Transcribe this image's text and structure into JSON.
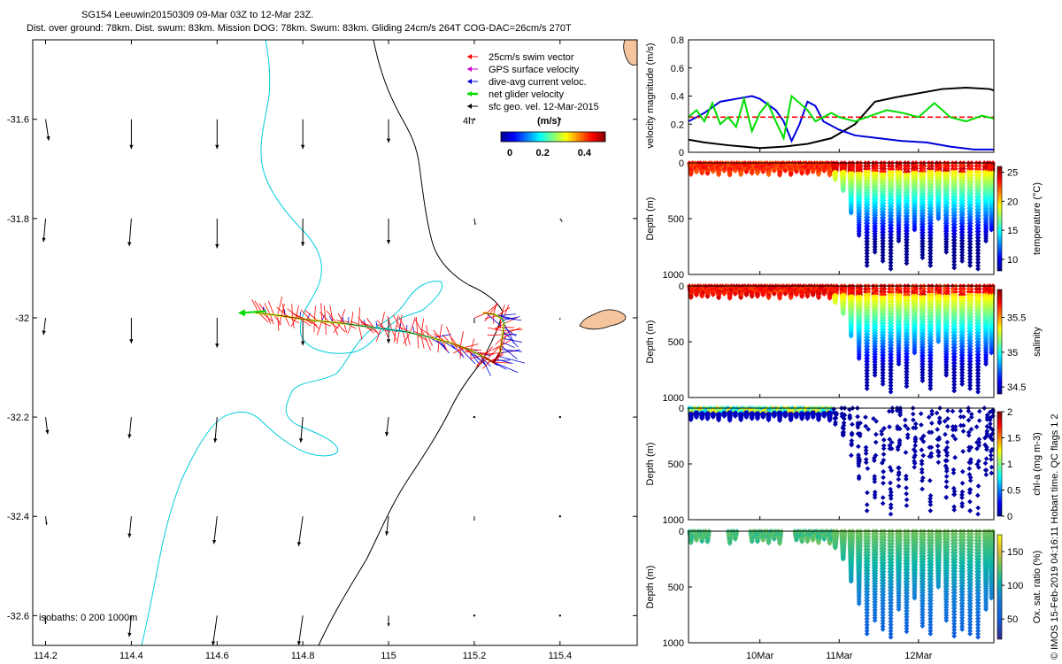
{
  "header": {
    "title_line1": "SG154 Leeuwin20150309 09-Mar 03Z to 12-Mar 23Z.",
    "title_line2": "Dist. over ground: 78km. Dist. swum: 83km. Mission DOG: 78km. Swum: 83km. Gliding 24cm/s 264T COG-DAC=26cm/s 270T"
  },
  "footer": {
    "credit": "© IMOS 15-Feb-2019 04:16:11 Hobart time. QC flags 1  2"
  },
  "colors": {
    "swim": "#ff0000",
    "gps": "#cc00cc",
    "dac": "#0000dd",
    "net": "#00dd00",
    "sfc": "#000000",
    "isobath200": "#00ccdd",
    "island": "#f5c49c"
  },
  "chart_data": [
    {
      "id": "map",
      "type": "map",
      "xlabel": "",
      "ylabel": "",
      "xlim": [
        114.17,
        115.58
      ],
      "ylim": [
        -32.66,
        -31.44
      ],
      "xticks": [
        114.2,
        114.4,
        114.6,
        114.8,
        115,
        115.2,
        115.4
      ],
      "xtick_labels": [
        "114.2",
        "114.4",
        "114.6",
        "114.8",
        "115",
        "115.2",
        "115.4"
      ],
      "yticks": [
        -31.6,
        -31.8,
        -32,
        -32.2,
        -32.4,
        -32.6
      ],
      "ytick_labels": [
        "-31.6",
        "-31.8",
        "-32",
        "-32.2",
        "-32.4",
        "-32.6"
      ],
      "legend": {
        "items": [
          {
            "label": "25cm/s swim vector",
            "color": "#ff0000"
          },
          {
            "label": "GPS surface velocity",
            "color": "#cc00cc"
          },
          {
            "label": "dive-avg current veloc.",
            "color": "#0000dd"
          },
          {
            "label": "net glider velocity",
            "color": "#00dd00"
          },
          {
            "label": "sfc geo. vel. 12-Mar-2015",
            "color": "#000000"
          }
        ],
        "time_step": "4h",
        "colorbar_title": "(m/s)",
        "colorbar_ticks": [
          "0",
          "0.2",
          "0.4"
        ],
        "colorbar_range": [
          0,
          0.5
        ]
      },
      "isobath_note": "isobaths: 0   200  1000m",
      "track": {
        "lon": [
          114.69,
          114.75,
          114.82,
          114.9,
          114.97,
          115.04,
          115.1,
          115.15,
          115.19,
          115.225,
          115.245,
          115.26,
          115.265,
          115.27,
          115.262,
          115.245,
          115.222
        ],
        "lat": [
          -31.99,
          -31.996,
          -32.005,
          -32.012,
          -32.02,
          -32.028,
          -32.04,
          -32.052,
          -32.065,
          -32.08,
          -32.09,
          -32.07,
          -32.04,
          -32.01,
          -32.0,
          -31.993,
          -31.99
        ]
      },
      "geo_vectors": {
        "lon": [
          114.2,
          114.4,
          114.6,
          114.8,
          115.0,
          115.2,
          115.4
        ],
        "lat": [
          -31.6,
          -31.8,
          -32.0,
          -32.2,
          -32.4,
          -32.6
        ],
        "u": [
          [
            0.03,
            0.0,
            0.0,
            0.0,
            0.0,
            0.0,
            0.0
          ],
          [
            -0.02,
            -0.02,
            0.0,
            0.0,
            0.0,
            0.01,
            0.02
          ],
          [
            -0.02,
            0.0,
            0.0,
            0.0,
            0.0,
            0.0,
            0.0
          ],
          [
            0.02,
            -0.02,
            -0.02,
            -0.02,
            -0.02,
            0.0,
            0.0
          ],
          [
            0.01,
            -0.02,
            -0.03,
            -0.04,
            -0.02,
            0.0,
            0.0
          ],
          [
            0.0,
            -0.02,
            -0.04,
            -0.04,
            0.0,
            0.0,
            0.0
          ]
        ],
        "v": [
          [
            -0.2,
            -0.28,
            -0.28,
            -0.28,
            -0.22,
            0.0,
            0.0
          ],
          [
            -0.22,
            -0.26,
            -0.28,
            -0.26,
            -0.24,
            -0.06,
            -0.03
          ],
          [
            -0.16,
            -0.24,
            -0.28,
            -0.26,
            -0.24,
            -0.05,
            -0.02
          ],
          [
            -0.16,
            -0.2,
            -0.24,
            -0.24,
            -0.18,
            0.0,
            0.0
          ],
          [
            -0.08,
            -0.2,
            -0.26,
            -0.28,
            -0.18,
            -0.04,
            0.0
          ],
          [
            -0.08,
            -0.2,
            -0.28,
            -0.28,
            -0.1,
            0.0,
            0.0
          ]
        ]
      }
    },
    {
      "id": "velocity",
      "type": "line",
      "ylabel": "velocity magnitude (m/s)",
      "ylim": [
        0,
        0.8
      ],
      "yticks": [
        0,
        0.2,
        0.4,
        0.6,
        0.8
      ],
      "ytick_labels": [
        "0",
        "0.2",
        "0.4",
        "0.6",
        "0.8"
      ],
      "xlim": [
        9.1,
        12.95
      ],
      "series": [
        {
          "name": "sfc geo. vel.",
          "color": "#000000",
          "x": [
            9.1,
            9.3,
            9.6,
            9.8,
            10.0,
            10.3,
            10.6,
            10.9,
            11.2,
            11.45,
            11.7,
            12.0,
            12.3,
            12.6,
            12.9,
            12.95
          ],
          "y": [
            0.09,
            0.07,
            0.05,
            0.04,
            0.03,
            0.04,
            0.06,
            0.1,
            0.2,
            0.36,
            0.39,
            0.42,
            0.45,
            0.46,
            0.45,
            0.44
          ]
        },
        {
          "name": "dive-avg current",
          "color": "#0000dd",
          "x": [
            9.1,
            9.3,
            9.5,
            9.7,
            9.9,
            10.0,
            10.2,
            10.3,
            10.4,
            10.5,
            10.6,
            10.7,
            10.8,
            11.0,
            11.2,
            11.5,
            11.8,
            12.1,
            12.4,
            12.7,
            12.95
          ],
          "y": [
            0.22,
            0.28,
            0.36,
            0.38,
            0.4,
            0.38,
            0.3,
            0.22,
            0.08,
            0.2,
            0.36,
            0.33,
            0.22,
            0.16,
            0.12,
            0.1,
            0.08,
            0.07,
            0.04,
            0.02,
            0.02
          ]
        },
        {
          "name": "swim speed",
          "color": "#ff0000",
          "dashed": true,
          "x": [
            9.1,
            12.95
          ],
          "y": [
            0.25,
            0.25
          ]
        },
        {
          "name": "net glider velocity",
          "color": "#00dd00",
          "x": [
            9.1,
            9.2,
            9.3,
            9.4,
            9.5,
            9.6,
            9.7,
            9.8,
            9.9,
            10.0,
            10.1,
            10.2,
            10.3,
            10.4,
            10.5,
            10.6,
            10.7,
            10.8,
            10.9,
            11.0,
            11.2,
            11.4,
            11.6,
            11.8,
            12.0,
            12.2,
            12.4,
            12.6,
            12.8,
            12.95
          ],
          "y": [
            0.25,
            0.3,
            0.22,
            0.35,
            0.2,
            0.25,
            0.18,
            0.38,
            0.15,
            0.28,
            0.35,
            0.22,
            0.1,
            0.4,
            0.35,
            0.3,
            0.22,
            0.25,
            0.28,
            0.25,
            0.22,
            0.26,
            0.3,
            0.28,
            0.25,
            0.35,
            0.25,
            0.22,
            0.26,
            0.24
          ]
        }
      ]
    },
    {
      "id": "temperature",
      "type": "scatter-section",
      "ylabel": "Depth (m)",
      "clabel": "temperature (°C)",
      "ylim": [
        1000,
        0
      ],
      "yticks": [
        0,
        500,
        1000
      ],
      "ytick_labels": [
        "0",
        "500",
        "1000"
      ],
      "crange": [
        8,
        26
      ],
      "cticks": [
        25,
        20,
        15,
        10
      ],
      "ctick_labels": [
        "25",
        "20",
        "15",
        "10"
      ],
      "profile_type": "deep_second_half"
    },
    {
      "id": "salinity",
      "type": "scatter-section",
      "ylabel": "Depth (m)",
      "clabel": "salinity",
      "ylim": [
        1000,
        0
      ],
      "yticks": [
        0,
        500,
        1000
      ],
      "ytick_labels": [
        "0",
        "500",
        "1000"
      ],
      "crange": [
        34.4,
        35.9
      ],
      "cticks": [
        35.5,
        35,
        34.5
      ],
      "ctick_labels": [
        "35.5",
        "35",
        "34.5"
      ],
      "profile_type": "deep_second_half"
    },
    {
      "id": "chla",
      "type": "scatter-section",
      "ylabel": "Depth (m)",
      "clabel": "chl-a (mg m-3)",
      "ylim": [
        1000,
        0
      ],
      "yticks": [
        0,
        500,
        1000
      ],
      "ytick_labels": [
        "0",
        "500",
        "1000"
      ],
      "crange": [
        0,
        2
      ],
      "cticks": [
        2,
        1.5,
        1,
        0.5,
        0
      ],
      "ctick_labels": [
        "2",
        "1.5",
        "1",
        "0.5",
        "0"
      ],
      "profile_type": "sparse"
    },
    {
      "id": "oxygen",
      "type": "scatter-section",
      "ylabel": "Depth (m)",
      "clabel": "Ox. sat. ratio (%)",
      "ylim": [
        1000,
        0
      ],
      "yticks": [
        0,
        500,
        1000
      ],
      "ytick_labels": [
        "0",
        "500",
        "1000"
      ],
      "crange": [
        20,
        175
      ],
      "cticks": [
        150,
        100,
        50
      ],
      "ctick_labels": [
        "150",
        "100",
        "50"
      ],
      "profile_type": "deep_gaps",
      "xlim": [
        9.1,
        12.95
      ],
      "xticks": [
        10,
        11,
        12
      ],
      "xtick_labels": [
        "10Mar",
        "11Mar",
        "12Mar"
      ]
    }
  ]
}
